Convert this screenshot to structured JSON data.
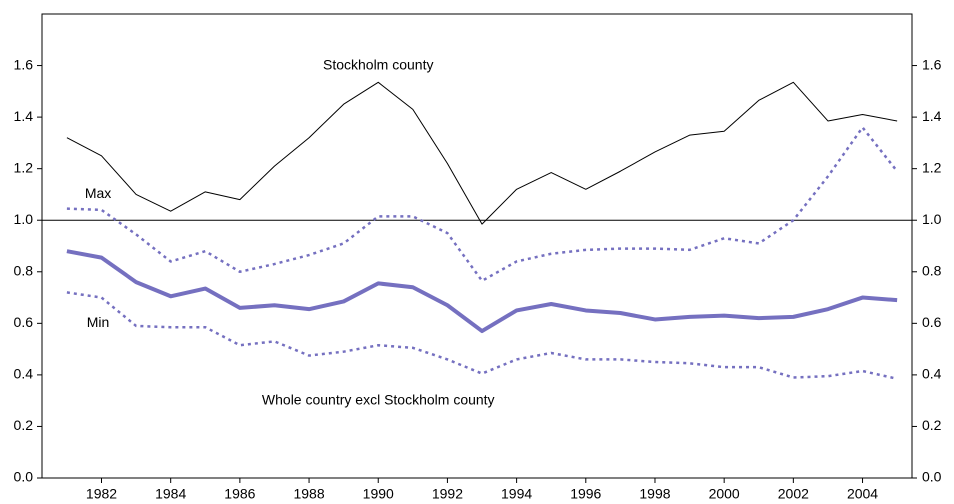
{
  "chart_data": {
    "type": "line",
    "x": [
      1981,
      1982,
      1983,
      1984,
      1985,
      1986,
      1987,
      1988,
      1989,
      1990,
      1991,
      1992,
      1993,
      1994,
      1995,
      1996,
      1997,
      1998,
      1999,
      2000,
      2001,
      2002,
      2003,
      2004,
      2005
    ],
    "series": [
      {
        "name": "Stockholm county",
        "color": "#000000",
        "style": "thin",
        "label_at": [
          1990,
          1.6
        ],
        "values": [
          1.32,
          1.25,
          1.1,
          1.035,
          1.11,
          1.08,
          1.21,
          1.32,
          1.45,
          1.535,
          1.43,
          1.22,
          0.985,
          1.12,
          1.185,
          1.12,
          1.19,
          1.265,
          1.33,
          1.345,
          1.465,
          1.535,
          1.385,
          1.41,
          1.385
        ]
      },
      {
        "name": "Whole country excl Stockholm county",
        "color": "#7570c0",
        "style": "thick",
        "label_at": [
          1990,
          0.3
        ],
        "values": [
          0.88,
          0.855,
          0.76,
          0.705,
          0.735,
          0.66,
          0.67,
          0.655,
          0.685,
          0.755,
          0.74,
          0.67,
          0.57,
          0.65,
          0.675,
          0.65,
          0.64,
          0.615,
          0.625,
          0.63,
          0.62,
          0.625,
          0.655,
          0.7,
          0.69
        ]
      },
      {
        "name": "Max",
        "color": "#7570c0",
        "style": "dotted",
        "label_at": [
          1981.9,
          1.1
        ],
        "values": [
          1.045,
          1.04,
          0.945,
          0.84,
          0.88,
          0.8,
          0.83,
          0.865,
          0.91,
          1.015,
          1.015,
          0.95,
          0.765,
          0.84,
          0.87,
          0.885,
          0.89,
          0.89,
          0.885,
          0.93,
          0.91,
          1.0,
          1.17,
          1.36,
          1.19
        ]
      },
      {
        "name": "Min",
        "color": "#7570c0",
        "style": "dotted",
        "label_at": [
          1981.9,
          0.6
        ],
        "values": [
          0.72,
          0.7,
          0.59,
          0.585,
          0.585,
          0.515,
          0.53,
          0.475,
          0.49,
          0.515,
          0.505,
          0.46,
          0.405,
          0.46,
          0.485,
          0.46,
          0.46,
          0.45,
          0.445,
          0.43,
          0.43,
          0.39,
          0.395,
          0.415,
          0.385
        ]
      }
    ],
    "xlim": [
      1980.28,
      2005.43
    ],
    "xticks": [
      1982,
      1984,
      1986,
      1988,
      1990,
      1992,
      1994,
      1996,
      1998,
      2000,
      2002,
      2004
    ],
    "ylim": [
      0,
      1.8
    ],
    "yticks": [
      {
        "value": 0,
        "label": "0.0"
      },
      0.2,
      0.4,
      0.6,
      0.8,
      {
        "value": 1,
        "label": "1.0"
      },
      1.2,
      1.4,
      1.6
    ],
    "y2lim": [
      0,
      1.8
    ],
    "y2ticks": [
      {
        "value": 0,
        "label": "0.0"
      },
      0.2,
      0.4,
      0.6,
      0.8,
      {
        "value": 1,
        "label": "1.0"
      },
      1.2,
      1.4,
      1.6
    ],
    "reference_line": 1
  }
}
